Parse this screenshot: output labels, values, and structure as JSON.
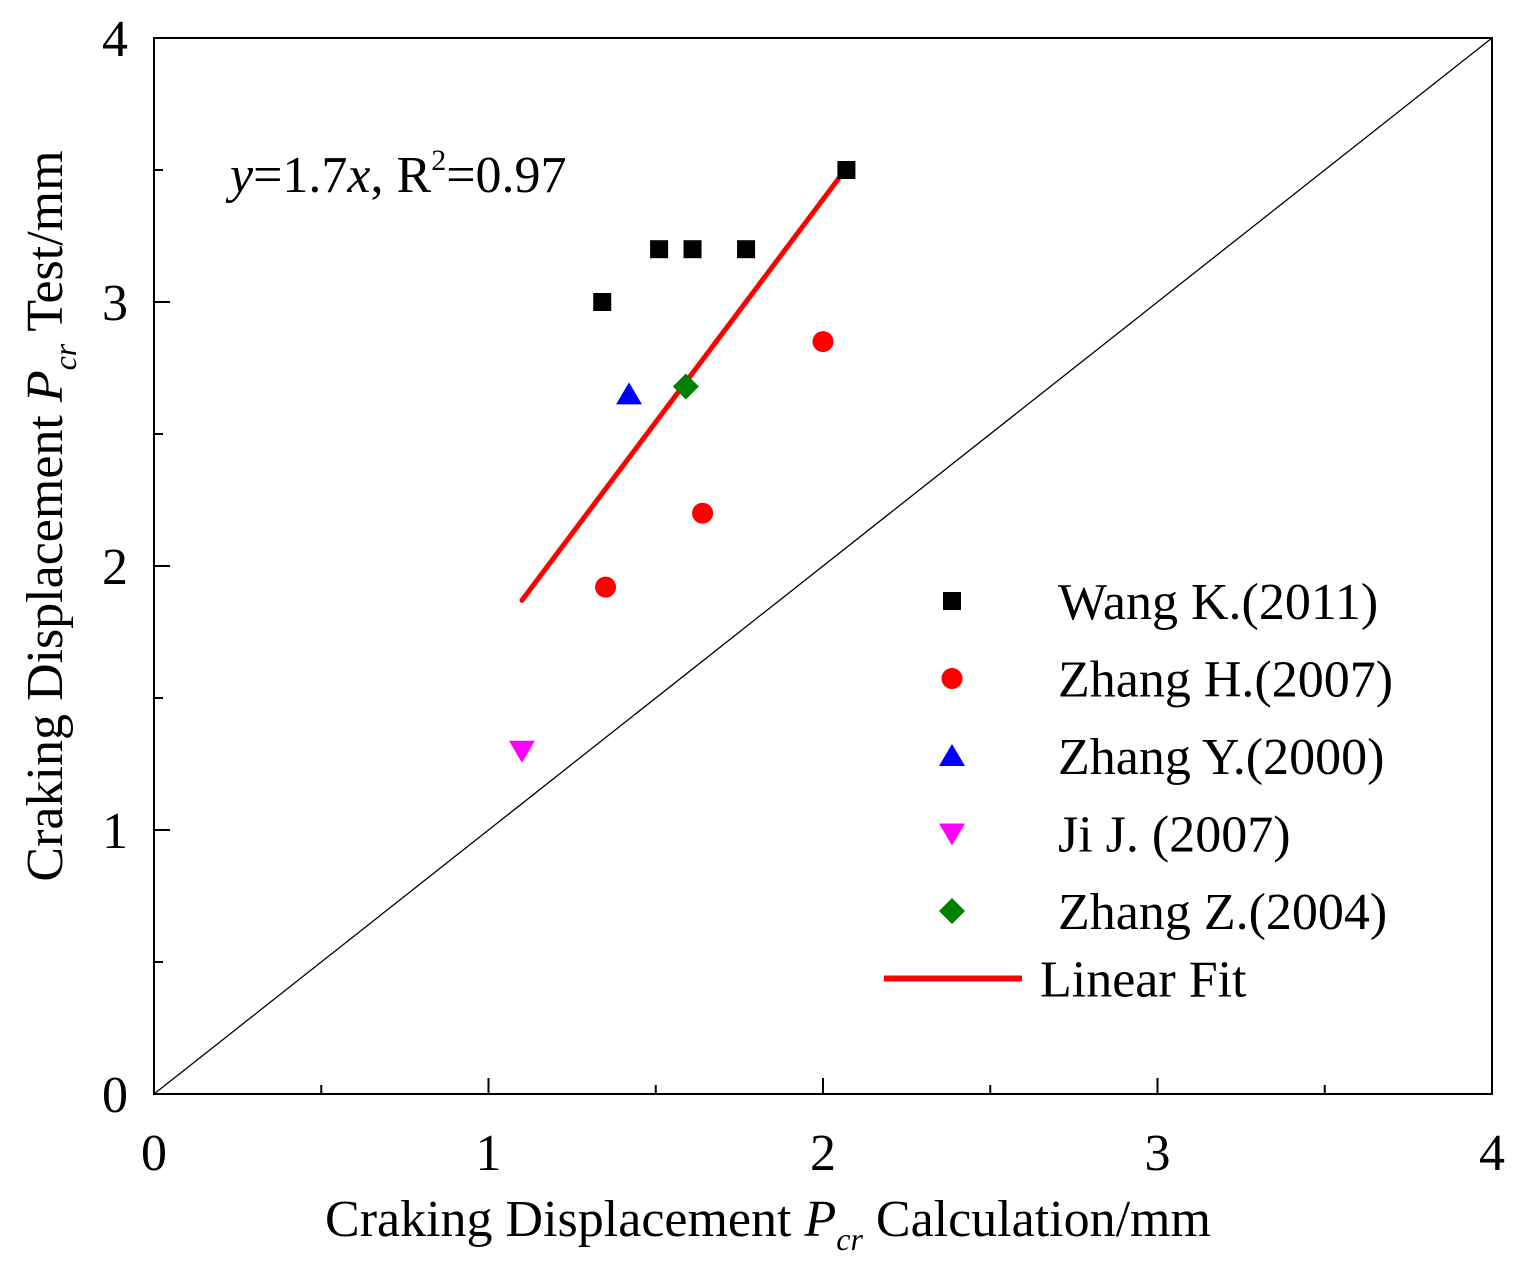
{
  "chart_data": {
    "type": "scatter",
    "xlabel": {
      "pre": "Craking Displacement ",
      "var": "P",
      "sub": "cr",
      "post": " Calculation/mm"
    },
    "ylabel": {
      "pre": "Craking Displacement ",
      "var": "P",
      "sub": "cr",
      "post": " Test/mm"
    },
    "xlim": [
      0,
      4
    ],
    "ylim": [
      0,
      4
    ],
    "x_major_ticks": [
      0,
      1,
      2,
      3,
      4
    ],
    "y_major_ticks": [
      0,
      1,
      2,
      3,
      4
    ],
    "x_minor_ticks": [
      0.5,
      1.5,
      2.5,
      3.5
    ],
    "y_minor_ticks": [
      0.5,
      1.5,
      2.5,
      3.5
    ],
    "x_tick_labels": [
      "0",
      "1",
      "2",
      "3",
      "4"
    ],
    "y_tick_labels": [
      "0",
      "1",
      "2",
      "3",
      "4"
    ],
    "grid": false,
    "reference_line": {
      "x": [
        0,
        4
      ],
      "y": [
        0,
        4
      ],
      "color": "#000000"
    },
    "annotation": {
      "y": "y",
      "eq": "=1.7",
      "x": "x",
      "comma": ", R",
      "sup": "2",
      "tail": "=0.97",
      "position": {
        "x": 0.22,
        "y": 3.5
      }
    },
    "series": [
      {
        "name": "Wang K.(2011)",
        "marker": "square",
        "color": "#000000",
        "points": [
          [
            1.34,
            3.0
          ],
          [
            1.51,
            3.2
          ],
          [
            1.61,
            3.2
          ],
          [
            1.77,
            3.2
          ],
          [
            2.07,
            3.5
          ]
        ]
      },
      {
        "name": "Zhang H.(2007)",
        "marker": "circle",
        "color": "#ff0000",
        "points": [
          [
            1.35,
            1.92
          ],
          [
            1.64,
            2.2
          ],
          [
            2.0,
            2.85
          ]
        ]
      },
      {
        "name": "Zhang Y.(2000)",
        "marker": "triangle-up",
        "color": "#0000ff",
        "points": [
          [
            1.42,
            2.65
          ]
        ]
      },
      {
        "name": "Ji J. (2007)",
        "marker": "triangle-down",
        "color": "#ff00ff",
        "points": [
          [
            1.1,
            1.3
          ]
        ]
      },
      {
        "name": "Zhang Z.(2004)",
        "marker": "diamond",
        "color": "#008000",
        "points": [
          [
            1.59,
            2.68
          ]
        ]
      }
    ],
    "fit": {
      "name": "Linear Fit",
      "color": "#ff0000",
      "x": [
        1.1,
        2.06
      ],
      "y": [
        1.87,
        3.49
      ]
    },
    "legend_position": "bottom-right"
  }
}
